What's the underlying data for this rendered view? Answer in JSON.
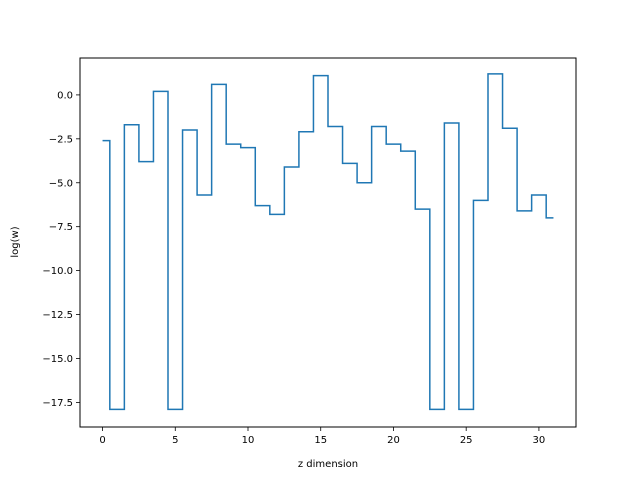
{
  "chart_data": {
    "type": "line",
    "drawstyle": "steps-mid",
    "title": "",
    "xlabel": "z dimension",
    "ylabel": "log(w)",
    "xlim": [
      -1.55,
      32.55
    ],
    "ylim": [
      -18.9,
      2.1
    ],
    "xticks": [
      0,
      5,
      10,
      15,
      20,
      25,
      30
    ],
    "xtick_labels": [
      "0",
      "5",
      "10",
      "15",
      "20",
      "25",
      "30"
    ],
    "yticks": [
      0.0,
      -2.5,
      -5.0,
      -7.5,
      -10.0,
      -12.5,
      -15.0,
      -17.5
    ],
    "ytick_labels": [
      "0.0",
      "−2.5",
      "−5.0",
      "−7.5",
      "−10.0",
      "−12.5",
      "−15.0",
      "−17.5"
    ],
    "grid": false,
    "color": "#1f77b4",
    "series": [
      {
        "x": [
          0,
          1,
          2,
          3,
          4,
          5,
          6,
          7,
          8,
          9,
          10,
          11,
          12,
          13,
          14,
          15,
          16,
          17,
          18,
          19,
          20,
          21,
          22,
          23,
          24,
          25,
          26,
          27,
          28,
          29,
          30,
          31
        ],
        "values": [
          -2.6,
          -17.9,
          -1.7,
          -3.8,
          0.2,
          -17.9,
          -2.0,
          -5.7,
          0.6,
          -2.8,
          -3.0,
          -6.3,
          -6.8,
          -4.1,
          -2.1,
          1.1,
          -1.8,
          -3.9,
          -5.0,
          -1.8,
          -2.8,
          -3.2,
          -6.5,
          -17.9,
          -1.6,
          -17.9,
          -6.0,
          1.2,
          -1.9,
          -6.6,
          -5.7,
          -7.0
        ]
      }
    ]
  }
}
